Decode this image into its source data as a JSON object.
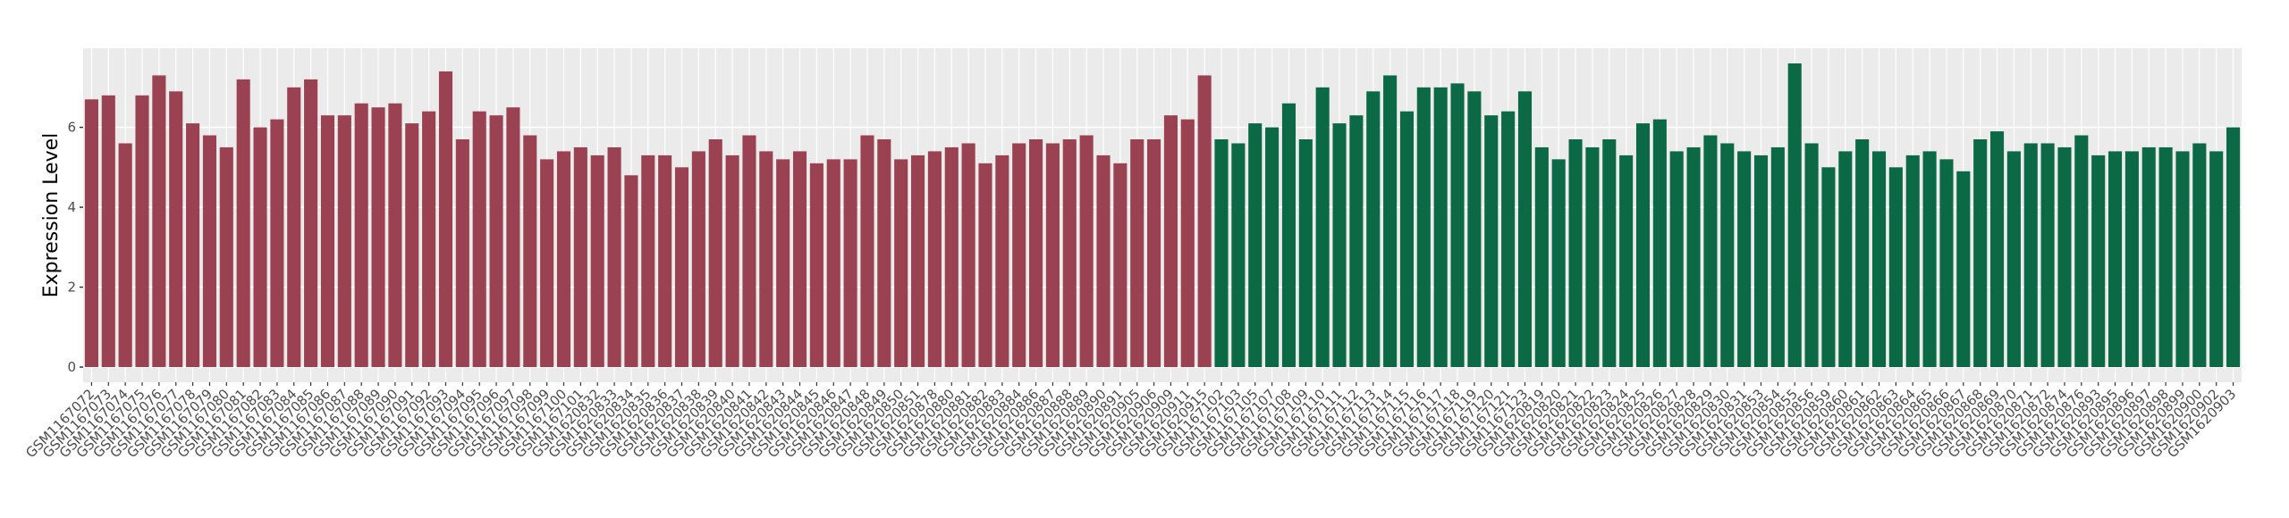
{
  "chart_data": {
    "type": "bar",
    "y_label": "Expression Level",
    "categories": [
      "GSM1167072",
      "GSM1167073",
      "GSM1167074",
      "GSM1167075",
      "GSM1167076",
      "GSM1167077",
      "GSM1167078",
      "GSM1167079",
      "GSM1167080",
      "GSM1167081",
      "GSM1167082",
      "GSM1167083",
      "GSM1167084",
      "GSM1167085",
      "GSM1167086",
      "GSM1167087",
      "GSM1167088",
      "GSM1167089",
      "GSM1167090",
      "GSM1167091",
      "GSM1167092",
      "GSM1167093",
      "GSM1167094",
      "GSM1167095",
      "GSM1167096",
      "GSM1167097",
      "GSM1167098",
      "GSM1167099",
      "GSM1167100",
      "GSM1167101",
      "GSM1620832",
      "GSM1620833",
      "GSM1620834",
      "GSM1620835",
      "GSM1620836",
      "GSM1620837",
      "GSM1620838",
      "GSM1620839",
      "GSM1620840",
      "GSM1620841",
      "GSM1620842",
      "GSM1620843",
      "GSM1620844",
      "GSM1620845",
      "GSM1620846",
      "GSM1620847",
      "GSM1620848",
      "GSM1620849",
      "GSM1620850",
      "GSM1620851",
      "GSM1620878",
      "GSM1620880",
      "GSM1620881",
      "GSM1620882",
      "GSM1620883",
      "GSM1620884",
      "GSM1620886",
      "GSM1620887",
      "GSM1620888",
      "GSM1620889",
      "GSM1620890",
      "GSM1620891",
      "GSM1620905",
      "GSM1620906",
      "GSM1620909",
      "GSM1620911",
      "GSM1620915",
      "GSM1167102",
      "GSM1167103",
      "GSM1167105",
      "GSM1167107",
      "GSM1167108",
      "GSM1167109",
      "GSM1167110",
      "GSM1167111",
      "GSM1167112",
      "GSM1167113",
      "GSM1167114",
      "GSM1167115",
      "GSM1167116",
      "GSM1167117",
      "GSM1167118",
      "GSM1167119",
      "GSM1167120",
      "GSM1167121",
      "GSM1167123",
      "GSM1620819",
      "GSM1620820",
      "GSM1620821",
      "GSM1620822",
      "GSM1620823",
      "GSM1620824",
      "GSM1620825",
      "GSM1620826",
      "GSM1620827",
      "GSM1620828",
      "GSM1620829",
      "GSM1620830",
      "GSM1620831",
      "GSM1620853",
      "GSM1620854",
      "GSM1620855",
      "GSM1620856",
      "GSM1620859",
      "GSM1620860",
      "GSM1620861",
      "GSM1620862",
      "GSM1620863",
      "GSM1620864",
      "GSM1620865",
      "GSM1620866",
      "GSM1620867",
      "GSM1620868",
      "GSM1620869",
      "GSM1620870",
      "GSM1620871",
      "GSM1620872",
      "GSM1620874",
      "GSM1620876",
      "GSM1620893",
      "GSM1620895",
      "GSM1620896",
      "GSM1620897",
      "GSM1620898",
      "GSM1620899",
      "GSM1620900",
      "GSM1620902",
      "GSM1620903"
    ],
    "series": [
      {
        "color": "#9a4252",
        "values": [
          6.7,
          6.8,
          5.6,
          6.8,
          7.3,
          6.9,
          6.1,
          5.8,
          5.5,
          7.2,
          6.0,
          6.2,
          7.0,
          7.2,
          6.3,
          6.3,
          6.6,
          6.5,
          6.6,
          6.1,
          6.4,
          7.4,
          5.7,
          6.4,
          6.3,
          6.5,
          5.8,
          5.2,
          5.4,
          5.5,
          5.3,
          5.5,
          4.8,
          5.3,
          5.3,
          5.0,
          5.4,
          5.7,
          5.3,
          5.8,
          5.4,
          5.2,
          5.4,
          5.1,
          5.2,
          5.2,
          5.8,
          5.7,
          5.2,
          5.3,
          5.4,
          5.5,
          5.6,
          5.1,
          5.3,
          5.6,
          5.7,
          5.6,
          5.7,
          5.8,
          5.3,
          5.1,
          5.7,
          5.7,
          6.3,
          6.2,
          7.3,
          null,
          null,
          null,
          null,
          null,
          null,
          null,
          null,
          null,
          null,
          null,
          null,
          null,
          null,
          null,
          null,
          null,
          null,
          null,
          null,
          null,
          null,
          null,
          null,
          null,
          null,
          null,
          null,
          null,
          null,
          null,
          null,
          null,
          null,
          null,
          null,
          null,
          null,
          null,
          null,
          null,
          null,
          null,
          null,
          null,
          null,
          null,
          null,
          null,
          null,
          null,
          null,
          null,
          null,
          null,
          null,
          null,
          null,
          null,
          null,
          null
        ]
      },
      {
        "color": "#0b6a45",
        "values": [
          null,
          null,
          null,
          null,
          null,
          null,
          null,
          null,
          null,
          null,
          null,
          null,
          null,
          null,
          null,
          null,
          null,
          null,
          null,
          null,
          null,
          null,
          null,
          null,
          null,
          null,
          null,
          null,
          null,
          null,
          null,
          null,
          null,
          null,
          null,
          null,
          null,
          null,
          null,
          null,
          null,
          null,
          null,
          null,
          null,
          null,
          null,
          null,
          null,
          null,
          null,
          null,
          null,
          null,
          null,
          null,
          null,
          null,
          null,
          null,
          null,
          null,
          null,
          null,
          null,
          null,
          null,
          5.7,
          5.6,
          6.1,
          6.0,
          6.6,
          5.7,
          7.0,
          6.1,
          6.3,
          6.9,
          7.3,
          6.4,
          7.0,
          7.0,
          7.1,
          6.9,
          6.3,
          6.4,
          6.9,
          5.5,
          5.2,
          5.7,
          5.5,
          5.7,
          5.3,
          6.1,
          6.2,
          5.4,
          5.5,
          5.8,
          5.6,
          5.4,
          5.3,
          5.5,
          7.6,
          5.6,
          5.0,
          5.4,
          5.7,
          5.4,
          5.0,
          5.3,
          5.4,
          5.2,
          4.9,
          5.7,
          5.9,
          5.4,
          5.6,
          5.6,
          5.5,
          5.8,
          5.3,
          5.4,
          5.4,
          5.5,
          5.5,
          5.4,
          5.6,
          5.4,
          6.0
        ]
      }
    ],
    "ylim": [
      -0.38,
      7.98
    ],
    "yticks": [
      0,
      2,
      4,
      6
    ],
    "grid": true
  }
}
